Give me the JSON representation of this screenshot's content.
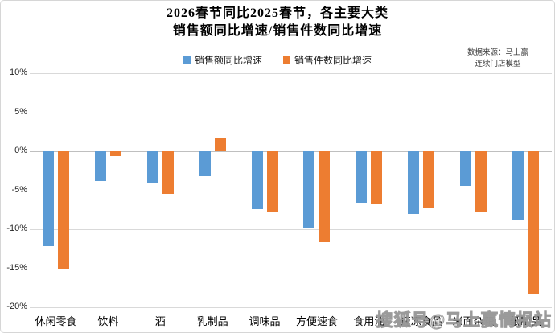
{
  "title": {
    "line1": "2026春节同比2025春节，各主要大类",
    "line2": "销售额同比增速/销售件数同比增速"
  },
  "source": {
    "line1": "数据来源：马上赢",
    "line2": "连续门店模型"
  },
  "watermark": "搜狐号@马上赢情报站",
  "colors": {
    "sales_value": "#5B9BD5",
    "sales_units": "#ED7D31",
    "gridline": "#d9d9d9",
    "zero_line": "#bfbfbf"
  },
  "chart_data": {
    "type": "bar",
    "title": "2026春节同比2025春节，各主要大类 销售额同比增速/销售件数同比增速",
    "categories": [
      "休闲零食",
      "饮料",
      "酒",
      "乳制品",
      "调味品",
      "方便速食",
      "食用油",
      "速冻食品",
      "米面杂粮",
      "纸制品"
    ],
    "series": [
      {
        "name": "销售额同比增速",
        "color": "#5B9BD5",
        "values": [
          -12.2,
          -3.8,
          -4.1,
          -3.2,
          -7.4,
          -9.9,
          -6.6,
          -8.0,
          -4.4,
          -8.9
        ]
      },
      {
        "name": "销售件数同比增速",
        "color": "#ED7D31",
        "values": [
          -15.2,
          -0.6,
          -5.5,
          1.6,
          -7.7,
          -11.7,
          -6.8,
          -7.2,
          -7.7,
          -18.4
        ]
      }
    ],
    "xlabel": "",
    "ylabel": "",
    "ylim": [
      -20,
      10
    ],
    "ytick_step": 5,
    "ytick_labels": [
      "10%",
      "5%",
      "0%",
      "-5%",
      "-10%",
      "-15%",
      "-20%"
    ],
    "grid": true,
    "legend_position": "top"
  }
}
